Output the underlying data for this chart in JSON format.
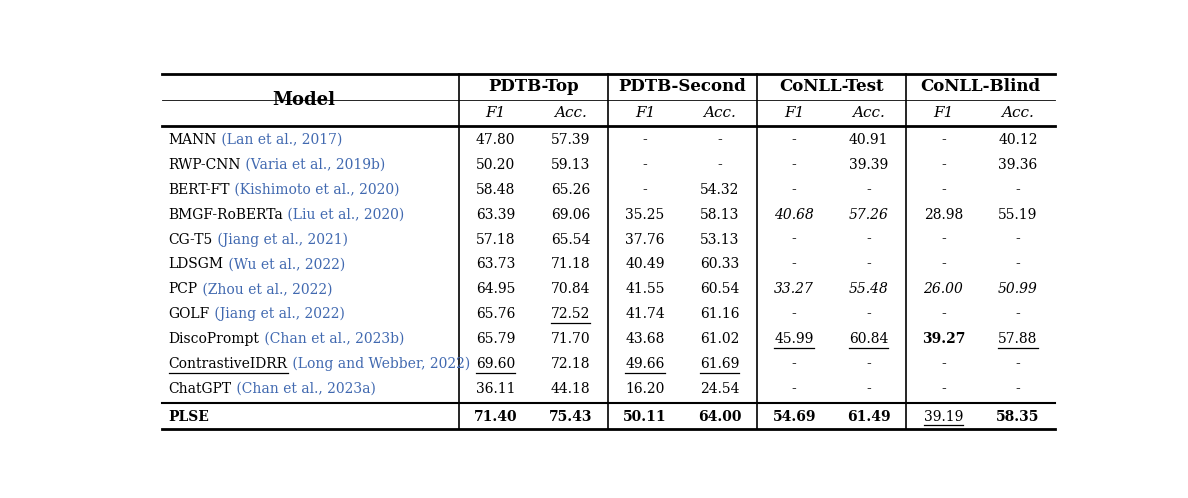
{
  "col_groups": [
    {
      "label": "PDTB-Top",
      "sub": [
        "F1",
        "Acc."
      ],
      "col_indices": [
        1,
        2
      ]
    },
    {
      "label": "PDTB-Second",
      "sub": [
        "F1",
        "Acc."
      ],
      "col_indices": [
        3,
        4
      ]
    },
    {
      "label": "CoNLL-Test",
      "sub": [
        "F1",
        "Acc."
      ],
      "col_indices": [
        5,
        6
      ]
    },
    {
      "label": "CoNLL-Blind",
      "sub": [
        "F1",
        "Acc."
      ],
      "col_indices": [
        7,
        8
      ]
    }
  ],
  "rows": [
    {
      "model_plain": "MANN",
      "model_cite": " (Lan et al., 2017)",
      "model_underline": false,
      "bold": false,
      "values": [
        "47.80",
        "57.39",
        "-",
        "-",
        "-",
        "40.91",
        "-",
        "40.12"
      ],
      "underline": [
        false,
        false,
        false,
        false,
        false,
        false,
        false,
        false
      ],
      "val_italic": [
        false,
        false,
        false,
        false,
        false,
        false,
        false,
        false
      ],
      "val_bold": [
        false,
        false,
        false,
        false,
        false,
        false,
        false,
        false
      ]
    },
    {
      "model_plain": "RWP-CNN",
      "model_cite": " (Varia et al., 2019b)",
      "model_underline": false,
      "bold": false,
      "values": [
        "50.20",
        "59.13",
        "-",
        "-",
        "-",
        "39.39",
        "-",
        "39.36"
      ],
      "underline": [
        false,
        false,
        false,
        false,
        false,
        false,
        false,
        false
      ],
      "val_italic": [
        false,
        false,
        false,
        false,
        false,
        false,
        false,
        false
      ],
      "val_bold": [
        false,
        false,
        false,
        false,
        false,
        false,
        false,
        false
      ]
    },
    {
      "model_plain": "BERT-FT",
      "model_cite": " (Kishimoto et al., 2020)",
      "model_underline": false,
      "bold": false,
      "values": [
        "58.48",
        "65.26",
        "-",
        "54.32",
        "-",
        "-",
        "-",
        "-"
      ],
      "underline": [
        false,
        false,
        false,
        false,
        false,
        false,
        false,
        false
      ],
      "val_italic": [
        false,
        false,
        false,
        false,
        false,
        false,
        false,
        false
      ],
      "val_bold": [
        false,
        false,
        false,
        false,
        false,
        false,
        false,
        false
      ]
    },
    {
      "model_plain": "BMGF-RoBERTa",
      "model_cite": " (Liu et al., 2020)",
      "model_underline": false,
      "bold": false,
      "values": [
        "63.39",
        "69.06",
        "35.25",
        "58.13",
        "40.68",
        "57.26",
        "28.98",
        "55.19"
      ],
      "underline": [
        false,
        false,
        false,
        false,
        false,
        false,
        false,
        false
      ],
      "val_italic": [
        false,
        false,
        false,
        false,
        true,
        true,
        false,
        false
      ],
      "val_bold": [
        false,
        false,
        false,
        false,
        false,
        false,
        false,
        false
      ]
    },
    {
      "model_plain": "CG-T5",
      "model_cite": " (Jiang et al., 2021)",
      "model_underline": false,
      "bold": false,
      "values": [
        "57.18",
        "65.54",
        "37.76",
        "53.13",
        "-",
        "-",
        "-",
        "-"
      ],
      "underline": [
        false,
        false,
        false,
        false,
        false,
        false,
        false,
        false
      ],
      "val_italic": [
        false,
        false,
        false,
        false,
        false,
        false,
        false,
        false
      ],
      "val_bold": [
        false,
        false,
        false,
        false,
        false,
        false,
        false,
        false
      ]
    },
    {
      "model_plain": "LDSGM",
      "model_cite": " (Wu et al., 2022)",
      "model_underline": false,
      "bold": false,
      "values": [
        "63.73",
        "71.18",
        "40.49",
        "60.33",
        "-",
        "-",
        "-",
        "-"
      ],
      "underline": [
        false,
        false,
        false,
        false,
        false,
        false,
        false,
        false
      ],
      "val_italic": [
        false,
        false,
        false,
        false,
        false,
        false,
        false,
        false
      ],
      "val_bold": [
        false,
        false,
        false,
        false,
        false,
        false,
        false,
        false
      ]
    },
    {
      "model_plain": "PCP",
      "model_cite": " (Zhou et al., 2022)",
      "model_underline": false,
      "bold": false,
      "values": [
        "64.95",
        "70.84",
        "41.55",
        "60.54",
        "33.27",
        "55.48",
        "26.00",
        "50.99"
      ],
      "underline": [
        false,
        false,
        false,
        false,
        false,
        false,
        false,
        false
      ],
      "val_italic": [
        false,
        false,
        false,
        false,
        true,
        true,
        true,
        true
      ],
      "val_bold": [
        false,
        false,
        false,
        false,
        false,
        false,
        false,
        false
      ]
    },
    {
      "model_plain": "GOLF",
      "model_cite": " (Jiang et al., 2022)",
      "model_underline": false,
      "bold": false,
      "values": [
        "65.76",
        "72.52",
        "41.74",
        "61.16",
        "-",
        "-",
        "-",
        "-"
      ],
      "underline": [
        false,
        true,
        false,
        false,
        false,
        false,
        false,
        false
      ],
      "val_italic": [
        false,
        false,
        false,
        false,
        false,
        false,
        false,
        false
      ],
      "val_bold": [
        false,
        false,
        false,
        false,
        false,
        false,
        false,
        false
      ]
    },
    {
      "model_plain": "DiscoPrompt",
      "model_cite": " (Chan et al., 2023b)",
      "model_underline": false,
      "bold": false,
      "values": [
        "65.79",
        "71.70",
        "43.68",
        "61.02",
        "45.99",
        "60.84",
        "39.27",
        "57.88"
      ],
      "underline": [
        false,
        false,
        false,
        false,
        true,
        true,
        false,
        true
      ],
      "val_italic": [
        false,
        false,
        false,
        false,
        false,
        false,
        false,
        false
      ],
      "val_bold": [
        false,
        false,
        false,
        false,
        false,
        false,
        true,
        false
      ]
    },
    {
      "model_plain": "ContrastiveIDRR",
      "model_cite": " (Long and Webber, 2022)",
      "model_underline": true,
      "bold": false,
      "values": [
        "69.60",
        "72.18",
        "49.66",
        "61.69",
        "-",
        "-",
        "-",
        "-"
      ],
      "underline": [
        true,
        false,
        true,
        true,
        false,
        false,
        false,
        false
      ],
      "val_italic": [
        false,
        false,
        false,
        false,
        false,
        false,
        false,
        false
      ],
      "val_bold": [
        false,
        false,
        false,
        false,
        false,
        false,
        false,
        false
      ]
    },
    {
      "model_plain": "ChatGPT",
      "model_cite": " (Chan et al., 2023a)",
      "model_underline": false,
      "bold": false,
      "values": [
        "36.11",
        "44.18",
        "16.20",
        "24.54",
        "-",
        "-",
        "-",
        "-"
      ],
      "underline": [
        false,
        false,
        false,
        false,
        false,
        false,
        false,
        false
      ],
      "val_italic": [
        false,
        false,
        false,
        false,
        false,
        false,
        false,
        false
      ],
      "val_bold": [
        false,
        false,
        false,
        false,
        false,
        false,
        false,
        false
      ]
    },
    {
      "model_plain": "PLSE",
      "model_cite": "",
      "model_underline": false,
      "bold": true,
      "values": [
        "71.40",
        "75.43",
        "50.11",
        "64.00",
        "54.69",
        "61.49",
        "39.19",
        "58.35"
      ],
      "underline": [
        false,
        false,
        false,
        false,
        false,
        false,
        true,
        false
      ],
      "val_italic": [
        false,
        false,
        false,
        false,
        false,
        false,
        false,
        false
      ],
      "val_bold": [
        true,
        true,
        true,
        true,
        true,
        true,
        false,
        true
      ]
    }
  ],
  "cite_color": "#4169B0",
  "normal_color": "#000000",
  "bg_color": "#ffffff"
}
